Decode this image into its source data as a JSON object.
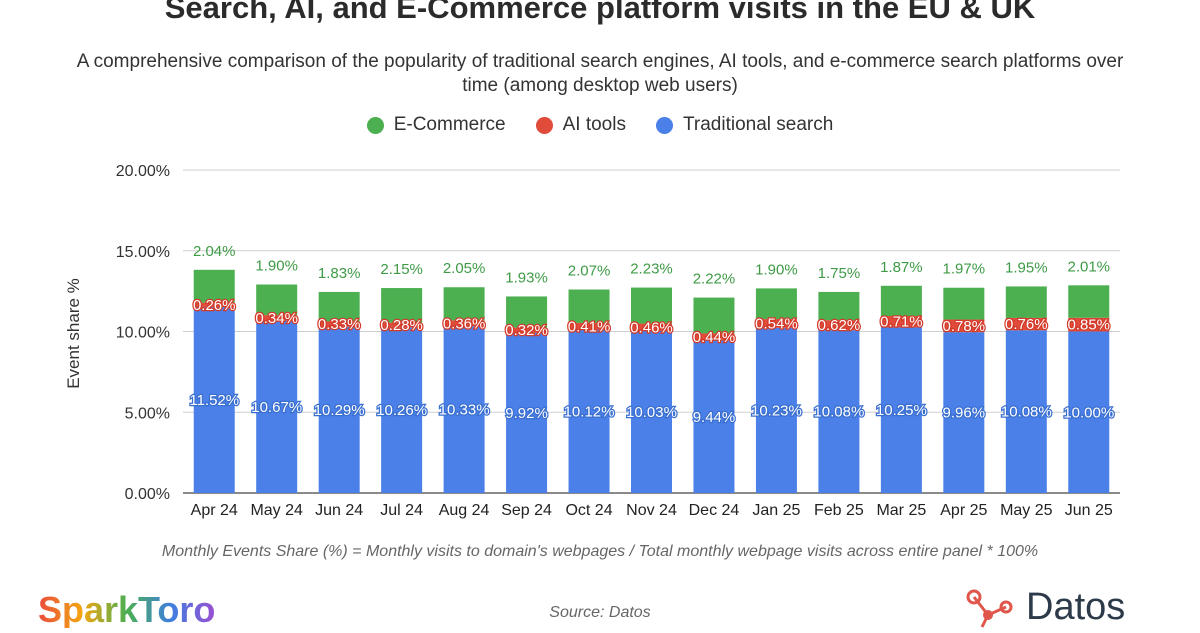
{
  "header": {
    "title": "Search, AI, and E-Commerce platform visits in the EU & UK",
    "subtitle": "A comprehensive comparison of the popularity of traditional search engines, AI tools, and e-commerce search platforms over time (among desktop web users)"
  },
  "legend": [
    {
      "label": "E-Commerce",
      "color": "#4caf50"
    },
    {
      "label": "AI tools",
      "color": "#e04b3a"
    },
    {
      "label": "Traditional search",
      "color": "#4a80e8"
    }
  ],
  "chart_data": {
    "type": "bar",
    "stacked": true,
    "categories": [
      "Apr 24",
      "May 24",
      "Jun 24",
      "Jul 24",
      "Aug 24",
      "Sep 24",
      "Oct 24",
      "Nov 24",
      "Dec 24",
      "Jan 25",
      "Feb 25",
      "Mar 25",
      "Apr 25",
      "May 25",
      "Jun 25"
    ],
    "series": [
      {
        "name": "Traditional search",
        "color": "#4a80e8",
        "values": [
          11.52,
          10.67,
          10.29,
          10.26,
          10.33,
          9.92,
          10.12,
          10.03,
          9.44,
          10.23,
          10.08,
          10.25,
          9.96,
          10.08,
          10.0
        ],
        "labels": [
          "11.52%",
          "10.67%",
          "10.29%",
          "10.26%",
          "10.33%",
          "9.92%",
          "10.12%",
          "10.03%",
          "9.44%",
          "10.23%",
          "10.08%",
          "10.25%",
          "9.96%",
          "10.08%",
          "10.00%"
        ]
      },
      {
        "name": "AI tools",
        "color": "#e04b3a",
        "values": [
          0.26,
          0.34,
          0.33,
          0.28,
          0.36,
          0.32,
          0.41,
          0.46,
          0.44,
          0.54,
          0.62,
          0.71,
          0.78,
          0.76,
          0.85
        ],
        "labels": [
          "0.26%",
          "0.34%",
          "0.33%",
          "0.28%",
          "0.36%",
          "0.32%",
          "0.41%",
          "0.46%",
          "0.44%",
          "0.54%",
          "0.62%",
          "0.71%",
          "0.78%",
          "0.76%",
          "0.85%"
        ]
      },
      {
        "name": "E-Commerce",
        "color": "#4caf50",
        "values": [
          2.04,
          1.9,
          1.83,
          2.15,
          2.05,
          1.93,
          2.07,
          2.23,
          2.22,
          1.9,
          1.75,
          1.87,
          1.97,
          1.95,
          2.01
        ],
        "labels": [
          "2.04%",
          "1.90%",
          "1.83%",
          "2.15%",
          "2.05%",
          "1.93%",
          "2.07%",
          "2.23%",
          "2.22%",
          "1.90%",
          "1.75%",
          "1.87%",
          "1.97%",
          "1.95%",
          "2.01%"
        ]
      }
    ],
    "yticks": [
      "0.00%",
      "5.00%",
      "10.00%",
      "15.00%",
      "20.00%"
    ],
    "ylim": [
      0,
      20
    ],
    "ylabel": "Event share %",
    "xlabel": "",
    "grid": true,
    "legend_position": "top"
  },
  "footnote": "Monthly Events Share (%) = Monthly visits to domain's webpages / Total monthly webpage visits across entire panel * 100%",
  "source": "Source: Datos",
  "logos": {
    "left": "SparkToro",
    "right": "Datos"
  }
}
